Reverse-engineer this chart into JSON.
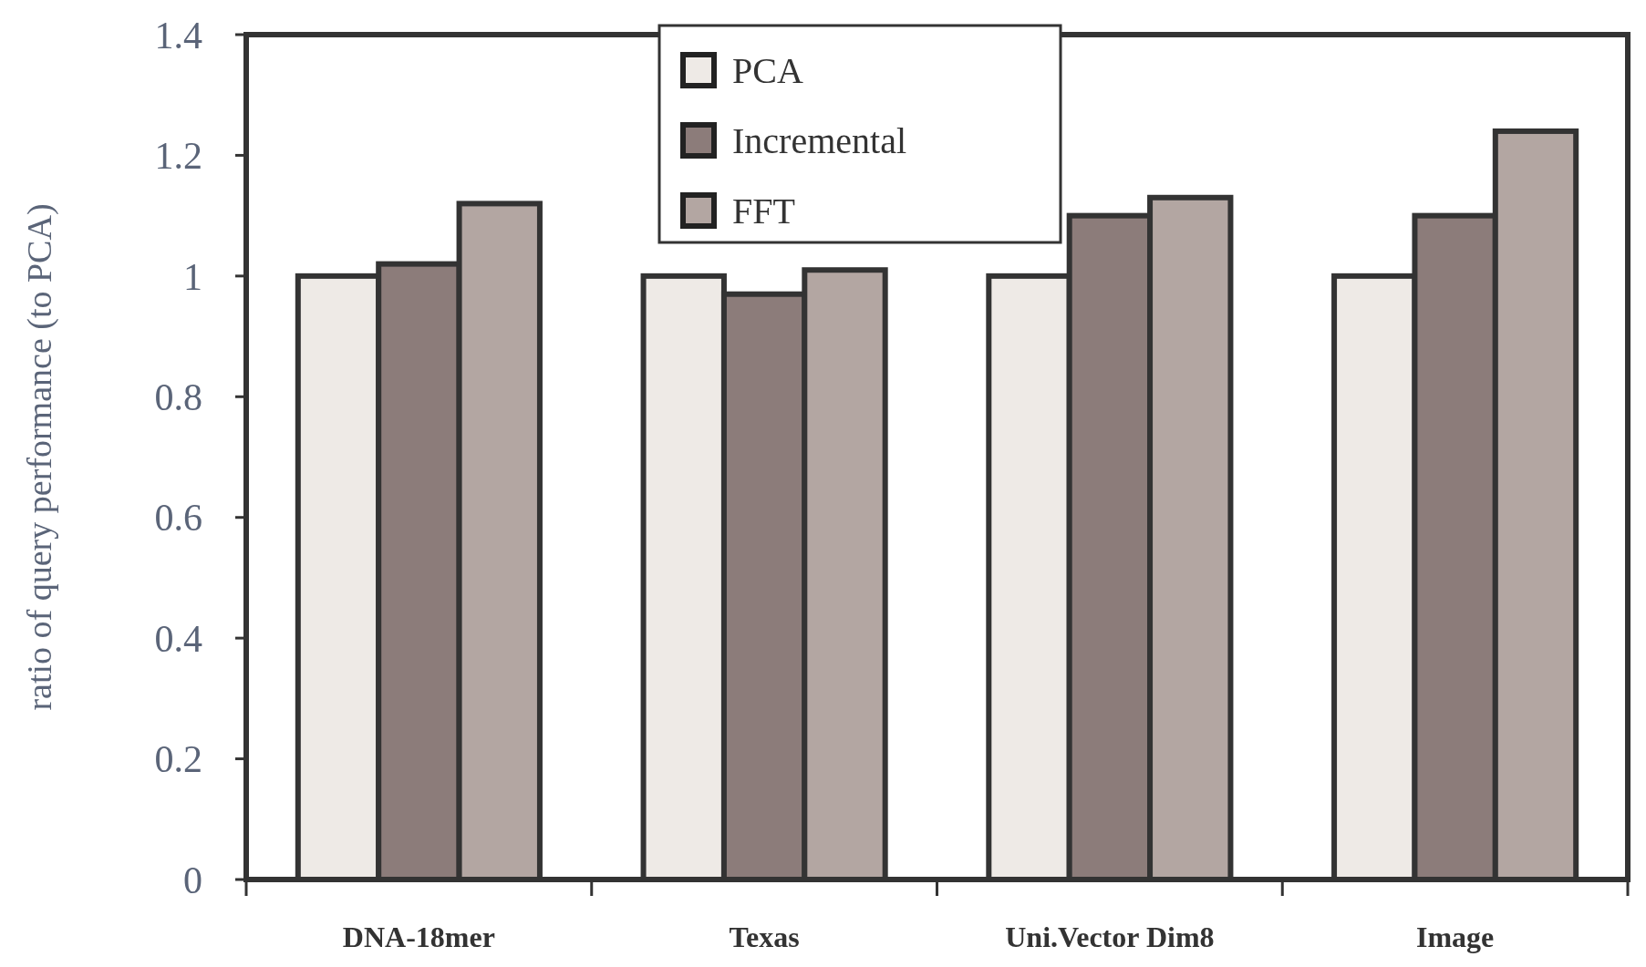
{
  "chart_data": {
    "type": "bar",
    "ylabel": "ratio of query performance (to PCA)",
    "categories": [
      "DNA-18mer",
      "Texas",
      "Uni.Vector Dim8",
      "Image"
    ],
    "series": [
      {
        "name": "PCA",
        "color": "#eeeae6",
        "values": [
          1,
          1,
          1,
          1
        ]
      },
      {
        "name": "Incremental",
        "color": "#8c7c7a",
        "values": [
          1.02,
          0.97,
          1.1,
          1.1
        ]
      },
      {
        "name": "FFT",
        "color": "#b3a6a2",
        "values": [
          1.12,
          1.01,
          1.13,
          1.24
        ]
      }
    ],
    "ylim": [
      0,
      1.4
    ],
    "yticks": [
      0,
      0.2,
      0.4,
      0.6,
      0.8,
      1,
      1.2,
      1.4
    ],
    "grid": false,
    "legend": "top"
  }
}
